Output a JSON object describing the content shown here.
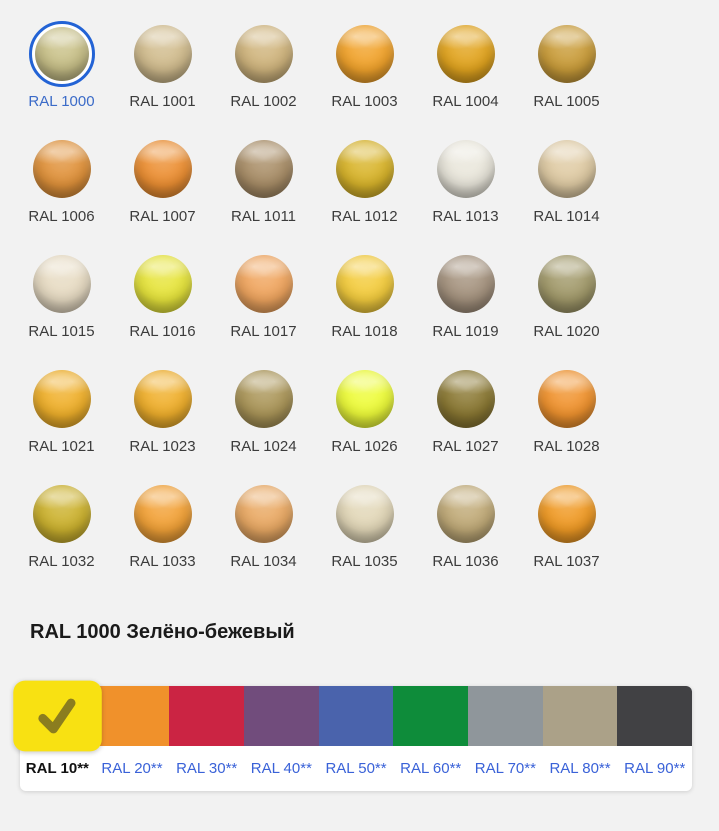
{
  "page": {
    "background": "#F2F2F2",
    "label_color": "#3C3C3C",
    "selected_label_color": "#3B6BC8",
    "selected_ring_color": "#2363D5",
    "link_color": "#3A62D8"
  },
  "palette_grid": {
    "items": [
      {
        "code": "RAL 1000",
        "color": "#C9C189",
        "selected": true
      },
      {
        "code": "RAL 1001",
        "color": "#D1BC8E",
        "selected": false
      },
      {
        "code": "RAL 1002",
        "color": "#CFB47D",
        "selected": false
      },
      {
        "code": "RAL 1003",
        "color": "#F1A32C",
        "selected": false
      },
      {
        "code": "RAL 1004",
        "color": "#E1A41F",
        "selected": false
      },
      {
        "code": "RAL 1005",
        "color": "#C99C3A",
        "selected": false
      },
      {
        "code": "RAL 1006",
        "color": "#E0923B",
        "selected": false
      },
      {
        "code": "RAL 1007",
        "color": "#EC8F33",
        "selected": false
      },
      {
        "code": "RAL 1011",
        "color": "#A98E68",
        "selected": false
      },
      {
        "code": "RAL 1012",
        "color": "#D8B42B",
        "selected": false
      },
      {
        "code": "RAL 1013",
        "color": "#E9E6DB",
        "selected": false
      },
      {
        "code": "RAL 1014",
        "color": "#DFCBA4",
        "selected": false
      },
      {
        "code": "RAL 1015",
        "color": "#E7DBC3",
        "selected": false
      },
      {
        "code": "RAL 1016",
        "color": "#E6E43C",
        "selected": false
      },
      {
        "code": "RAL 1017",
        "color": "#EFA55F",
        "selected": false
      },
      {
        "code": "RAL 1018",
        "color": "#F3CC3E",
        "selected": false
      },
      {
        "code": "RAL 1019",
        "color": "#A5937F",
        "selected": false
      },
      {
        "code": "RAL 1020",
        "color": "#A29A6B",
        "selected": false
      },
      {
        "code": "RAL 1021",
        "color": "#EFB02B",
        "selected": false
      },
      {
        "code": "RAL 1023",
        "color": "#EFAF2C",
        "selected": false
      },
      {
        "code": "RAL 1024",
        "color": "#AB9659",
        "selected": false
      },
      {
        "code": "RAL 1026",
        "color": "#EDFB3A",
        "selected": false
      },
      {
        "code": "RAL 1027",
        "color": "#8A7833",
        "selected": false
      },
      {
        "code": "RAL 1028",
        "color": "#F0932F",
        "selected": false
      },
      {
        "code": "RAL 1032",
        "color": "#CCB22F",
        "selected": false
      },
      {
        "code": "RAL 1033",
        "color": "#F2A238",
        "selected": false
      },
      {
        "code": "RAL 1034",
        "color": "#E9A964",
        "selected": false
      },
      {
        "code": "RAL 1035",
        "color": "#E2D7B8",
        "selected": false
      },
      {
        "code": "RAL 1036",
        "color": "#C0AA78",
        "selected": false
      },
      {
        "code": "RAL 1037",
        "color": "#EF9A25",
        "selected": false
      }
    ]
  },
  "detail": {
    "heading": "RAL 1000 Зелёно-бежевый"
  },
  "series_tabs": {
    "check_color": "#8B7D1F",
    "items": [
      {
        "label": "RAL 10**",
        "color": "#F8E112",
        "selected": true
      },
      {
        "label": "RAL 20**",
        "color": "#F0912B",
        "selected": false
      },
      {
        "label": "RAL 30**",
        "color": "#CB2443",
        "selected": false
      },
      {
        "label": "RAL 40**",
        "color": "#714C7C",
        "selected": false
      },
      {
        "label": "RAL 50**",
        "color": "#4A63AC",
        "selected": false
      },
      {
        "label": "RAL 60**",
        "color": "#0E8C3A",
        "selected": false
      },
      {
        "label": "RAL 70**",
        "color": "#8F969B",
        "selected": false
      },
      {
        "label": "RAL 80**",
        "color": "#ABA188",
        "selected": false
      },
      {
        "label": "RAL 90**",
        "color": "#414144",
        "selected": false
      }
    ]
  }
}
